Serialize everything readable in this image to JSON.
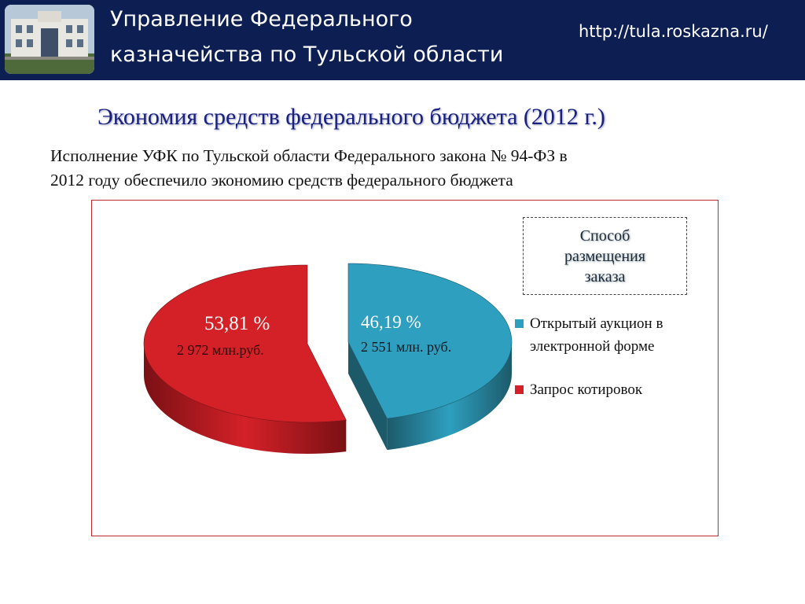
{
  "header": {
    "title_line1": "Управление Федерального",
    "title_line2": "казначейства по Тульской области",
    "url": "http://tula.roskazna.ru/"
  },
  "slide": {
    "title": "Экономия средств федерального бюджета (2012 г.)",
    "intro_line1": "Исполнение УФК по Тульской области Федерального закона № 94-ФЗ в",
    "intro_line2": "2012 году обеспечило экономию средств федерального бюджета"
  },
  "chart_data": {
    "type": "pie",
    "legend_title": "Способ размещения заказа",
    "legend_position": "right",
    "slices": [
      {
        "name": "Открытый аукцион в электронной форме",
        "percent": 46.19,
        "percent_label": "46,19 %",
        "amount_label": "2 551 млн. руб.",
        "color": "#2e9fbf",
        "side_color": "#1c5a6a"
      },
      {
        "name": "Запрос котировок",
        "percent": 53.81,
        "percent_label": "53,81 %",
        "amount_label": "2 972 млн.руб.",
        "color": "#d42128",
        "side_color": "#7a1014"
      }
    ]
  }
}
